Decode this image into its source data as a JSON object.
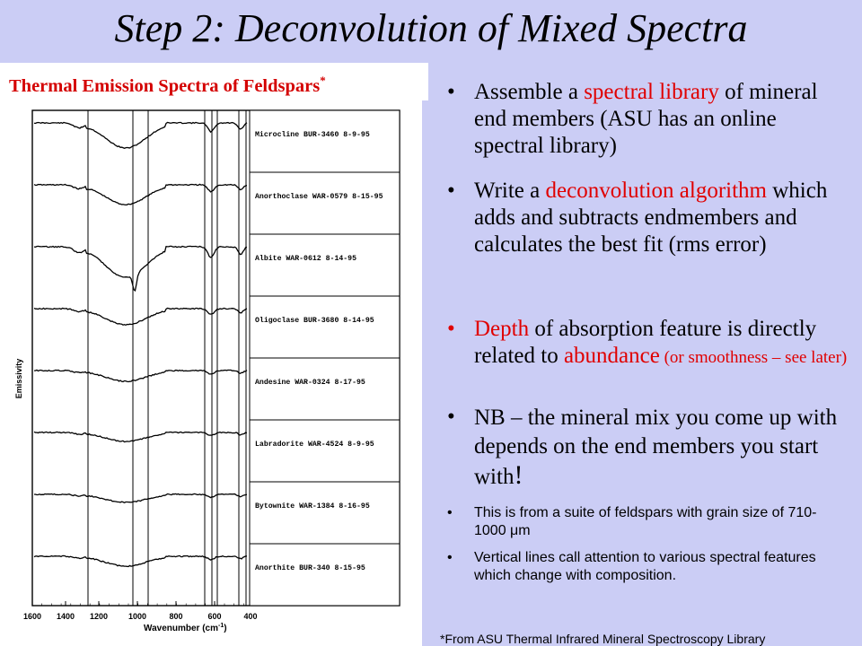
{
  "slide_title": "Step 2: Deconvolution of Mixed Spectra",
  "figure": {
    "title": "Thermal Emission Spectra of Feldspars",
    "title_mark": "*",
    "ylabel": "Emissivity",
    "xlabel": "Wavenumber (cm",
    "xlabel_sup": "-1",
    "xlabel_end": ")",
    "xticks": [
      "1600",
      "1400",
      "1200",
      "1000",
      "800",
      "600",
      "400"
    ],
    "spectra_labels": [
      "Microcline BUR-3460 8-9-95",
      "Anorthoclase WAR-0579 8-15-95",
      "Albite WAR-0612 8-14-95",
      "Oligoclase BUR-3680 8-14-95",
      "Andesine WAR-0324 8-17-95",
      "Labradorite WAR-4524 8-9-95",
      "Bytownite WAR-1384 8-16-95",
      "Anorthite BUR-340 8-15-95"
    ]
  },
  "bullets": [
    {
      "parts": [
        {
          "t": "Assemble a ",
          "red": false
        },
        {
          "t": "spectral library",
          "red": true
        },
        {
          "t": " of mineral end members (ASU has an online spectral library)",
          "red": false
        }
      ]
    },
    {
      "parts": [
        {
          "t": "Write a ",
          "red": false
        },
        {
          "t": "deconvolution algorithm",
          "red": true
        },
        {
          "t": " which adds and subtracts endmembers and calculates the best fit (rms error)",
          "red": false
        }
      ]
    },
    {
      "parts": [
        {
          "t": "Depth",
          "red": true
        },
        {
          "t": " of absorption feature is directly related to ",
          "red": false
        },
        {
          "t": "abundance",
          "red": true
        },
        {
          "t": " (or smoothness – see later)",
          "red": true,
          "small": true
        }
      ]
    },
    {
      "parts": [
        {
          "t": "NB – the mineral mix you come up with depends on the end members you start with",
          "red": false
        },
        {
          "t": "!",
          "red": false
        }
      ]
    }
  ],
  "small_bullets": [
    "This is from a suite of feldspars with grain size of 710-1000 μm",
    "Vertical lines call attention to various spectral features which change with composition."
  ],
  "footnote": "*From ASU Thermal Infrared Mineral Spectroscopy Library"
}
